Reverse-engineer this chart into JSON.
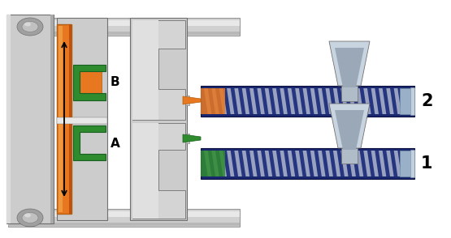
{
  "bg_color": "#ffffff",
  "gray_light": "#cccccc",
  "gray_mid": "#a0a0a0",
  "gray_dark": "#707070",
  "gray_platen": "#b8b8b8",
  "orange": "#e87820",
  "green": "#2e8b2e",
  "dark_blue": "#1a2870",
  "blue_screw": "#263580",
  "screw_light": "#c0c8d8",
  "label_B": "B",
  "label_A": "A",
  "label_1": "1",
  "label_2": "2",
  "figw": 5.55,
  "figh": 2.94,
  "dpi": 100
}
